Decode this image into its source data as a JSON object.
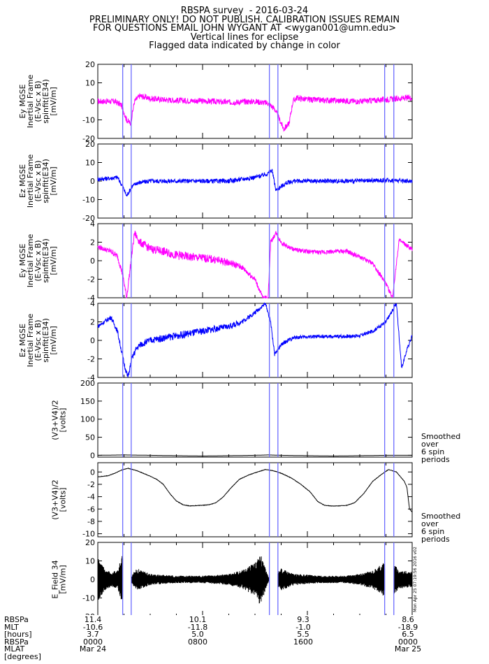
{
  "header": {
    "lines": [
      "RBSPA survey  - 2016-03-24",
      "PRELIMINARY ONLY! DO NOT PUBLISH. CALIBRATION ISSUES REMAIN",
      "FOR QUESTIONS EMAIL JOHN WYGANT AT <wygan001@umn.edu>",
      "Vertical lines for eclipse",
      "Flagged data indicated by change in color"
    ]
  },
  "colors": {
    "magenta": "#ff00ff",
    "blue": "#0000ff",
    "black": "#000000",
    "eclipse_line": "#6b6bff"
  },
  "chart_data": [
    {
      "type": "line",
      "panel": 1,
      "ylabel": [
        "Ey MGSE",
        "Inertial Frame",
        "(E-Vsc x B)",
        "spinfit(E34)",
        "[mV/m]"
      ],
      "ylim": [
        -20,
        20
      ],
      "yticks": [
        "20",
        "10",
        "0",
        "-10",
        "-20"
      ],
      "series": [
        {
          "color": "magenta",
          "x": [
            0,
            1.3,
            1.8,
            2.2,
            2.5,
            2.8,
            3.2,
            4,
            5,
            6,
            8,
            10,
            12,
            13,
            13.5,
            14.2,
            14.6,
            14.9,
            15.2,
            15.5,
            16,
            17,
            18,
            20,
            22,
            24
          ],
          "y": [
            0,
            0,
            -2,
            -10,
            -12,
            0,
            3,
            1.5,
            1,
            0.5,
            0.2,
            -0.5,
            0,
            -1,
            -4,
            -15,
            -12,
            0,
            2,
            1.5,
            1,
            0.6,
            0.5,
            0,
            1,
            2
          ]
        }
      ]
    },
    {
      "type": "line",
      "panel": 2,
      "ylabel": [
        "Ez MGSE",
        "Inertial Frame",
        "(E-Vsc x B)",
        "spinfit(E34)",
        "[mV/m]"
      ],
      "ylim": [
        -20,
        20
      ],
      "yticks": [
        "20",
        "10",
        "0",
        "-10",
        "-20"
      ],
      "series": [
        {
          "color": "blue",
          "x": [
            0,
            1,
            1.5,
            1.9,
            2.2,
            2.6,
            3,
            4,
            6,
            8,
            10,
            12,
            13,
            13.3,
            13.6,
            14,
            14.4,
            15,
            16,
            18,
            20,
            22,
            24
          ],
          "y": [
            1,
            1.5,
            2,
            -3,
            -8,
            -3,
            -1,
            0,
            0,
            0,
            0,
            2,
            4,
            6,
            -5,
            -3,
            -1,
            0,
            0,
            0,
            0,
            0.5,
            0
          ]
        }
      ]
    },
    {
      "type": "line",
      "panel": 3,
      "ylabel": [
        "Ey MGSE",
        "Inertial Frame",
        "(E-Vsc x B)",
        "spinfit(E34)",
        "[mV/m]"
      ],
      "ylim": [
        -4,
        4
      ],
      "yticks": [
        "4",
        "2",
        "0",
        "-2",
        "-4"
      ],
      "series": [
        {
          "color": "magenta",
          "x": [
            0,
            0.6,
            1,
            1.5,
            1.9,
            2.2,
            2.5,
            2.8,
            3.2,
            4,
            5,
            6,
            7,
            8,
            9,
            10,
            11,
            12,
            12.6,
            13,
            13.2,
            13.6,
            14,
            14.5,
            15,
            16,
            17,
            18,
            19,
            20,
            21,
            22,
            22.5,
            23,
            24
          ],
          "y": [
            1.5,
            1.2,
            1.0,
            0.5,
            -1.5,
            -4,
            -0.5,
            3,
            2,
            1.3,
            1.0,
            0.6,
            0.4,
            0.3,
            0.1,
            -0.2,
            -0.7,
            -2,
            -4,
            -4,
            2,
            3,
            2,
            1.5,
            1.2,
            1.0,
            0.9,
            1.0,
            1.0,
            0.4,
            -0.3,
            -2.5,
            -4,
            2.2,
            1.2
          ]
        }
      ]
    },
    {
      "type": "line",
      "panel": 4,
      "ylabel": [
        "Ez MGSE",
        "Inertial Frame",
        "(E-Vsc x B)",
        "spinfit(E34)",
        "[mV/m]"
      ],
      "ylim": [
        -4,
        4
      ],
      "yticks": [
        "4",
        "2",
        "0",
        "-2",
        "-4"
      ],
      "series": [
        {
          "color": "blue",
          "x": [
            0,
            0.5,
            1,
            1.5,
            2,
            2.3,
            2.6,
            2.9,
            3.2,
            4,
            6,
            8,
            10,
            11,
            12,
            12.4,
            12.8,
            13.2,
            13.5,
            14,
            14.5,
            15,
            16,
            18,
            20,
            21,
            22,
            22.4,
            22.8,
            23.2,
            23.6,
            24
          ],
          "y": [
            1.5,
            2,
            2.5,
            1,
            -2.5,
            -4,
            -2,
            -1,
            -0.5,
            0,
            0.5,
            1,
            1.5,
            2,
            3,
            3.5,
            4,
            2,
            -1.5,
            -0.5,
            0,
            0.3,
            0.4,
            0.4,
            0.5,
            1,
            2,
            3,
            4,
            -3,
            -1,
            0.5
          ]
        }
      ]
    },
    {
      "type": "line",
      "panel": 5,
      "ylabel": [
        "(V3+V4)/2",
        "[volts]"
      ],
      "ylim": [
        -5,
        200
      ],
      "yticks": [
        "200",
        "150",
        "100",
        "50",
        "0"
      ],
      "annotation": [
        "Smoothed",
        "over",
        "6 spin",
        "periods"
      ],
      "series": [
        {
          "color": "black",
          "x": [
            0,
            2,
            4,
            6,
            8,
            10,
            12,
            13,
            14,
            16,
            18,
            20,
            22,
            24
          ],
          "y": [
            0,
            1,
            0,
            -1,
            -2,
            -1,
            0,
            1,
            0,
            -1,
            -2,
            -1,
            0,
            0
          ]
        }
      ]
    },
    {
      "type": "line",
      "panel": 6,
      "ylabel": [
        "(V3+V4)/2",
        "[volts]"
      ],
      "ylim": [
        -10.5,
        1.5
      ],
      "yticks": [
        "0",
        "-2",
        "-4",
        "-6",
        "-8",
        "-10"
      ],
      "annotation": [
        "Smoothed",
        "over",
        "6 spin",
        "periods"
      ],
      "series": [
        {
          "color": "black",
          "x": [
            0,
            0.8,
            1.3,
            1.8,
            2.3,
            3,
            3.8,
            4.5,
            5,
            5.5,
            6,
            6.5,
            7,
            8,
            8.5,
            9,
            9.6,
            10.2,
            10.8,
            11.5,
            12.2,
            12.8,
            13.4,
            14,
            14.8,
            15.5,
            16.2,
            16.8,
            17.3,
            17.8,
            18.3,
            19,
            19.6,
            20.3,
            21,
            21.6,
            22.2,
            22.8,
            23.4,
            23.6,
            23.8,
            24
          ],
          "y": [
            -0.8,
            -0.6,
            -0.2,
            0.3,
            0.6,
            0.2,
            -0.5,
            -1.2,
            -2.0,
            -3.5,
            -4.7,
            -5.3,
            -5.5,
            -5.4,
            -5.3,
            -5.0,
            -4.0,
            -2.5,
            -1.2,
            -0.5,
            0,
            0.4,
            0.2,
            -0.2,
            -1.0,
            -2.0,
            -3.2,
            -4.8,
            -5.4,
            -5.5,
            -5.5,
            -5.4,
            -5.0,
            -3.5,
            -1.5,
            -0.5,
            0.4,
            0,
            -1.5,
            -2.5,
            -6,
            -6.5
          ]
        }
      ]
    },
    {
      "type": "line",
      "panel": 7,
      "ylabel": [
        "E_Field 34",
        "[mV/m]"
      ],
      "ylim": [
        -20,
        20
      ],
      "yticks": [
        "20",
        "10",
        "0",
        "-10",
        "-20"
      ],
      "side_text": "Mon Apr 25 07:19:56 2016 v02",
      "series": [
        {
          "color": "black",
          "style": "envelope",
          "x": [
            0,
            0.5,
            1,
            1.5,
            1.9,
            2.3,
            3,
            4,
            6,
            8,
            10,
            11,
            12,
            12.4,
            13.1,
            14,
            15,
            17,
            18,
            19,
            20,
            21,
            21.6,
            22.2,
            23,
            24
          ],
          "y": [
            12,
            6,
            4,
            5,
            14,
            0,
            6,
            3,
            2,
            2,
            3,
            5,
            9,
            14,
            0,
            6,
            3,
            2,
            2,
            2,
            3,
            5,
            8,
            12,
            5,
            4
          ]
        }
      ]
    }
  ],
  "eclipse_lines_hours": [
    1.9,
    2.55,
    13.1,
    13.75,
    21.9,
    22.6
  ],
  "footer": {
    "row_labels": [
      "RBSPa",
      "MLT",
      "[hours]",
      "RBSPa",
      "MLAT",
      "[degrees]"
    ],
    "columns": [
      {
        "hour": 0,
        "lines": [
          "11.4",
          "-10.6",
          "3.7",
          "0000",
          "Mar 24"
        ]
      },
      {
        "hour": 8,
        "lines": [
          "10.1",
          "-11.8",
          "5.0",
          "0800",
          ""
        ]
      },
      {
        "hour": 16,
        "lines": [
          "9.3",
          "-1.0",
          "5.5",
          "1600",
          ""
        ]
      },
      {
        "hour": 24,
        "lines": [
          "8.6",
          "-18.9",
          "6.5",
          "0000",
          "Mar 25"
        ]
      }
    ]
  }
}
